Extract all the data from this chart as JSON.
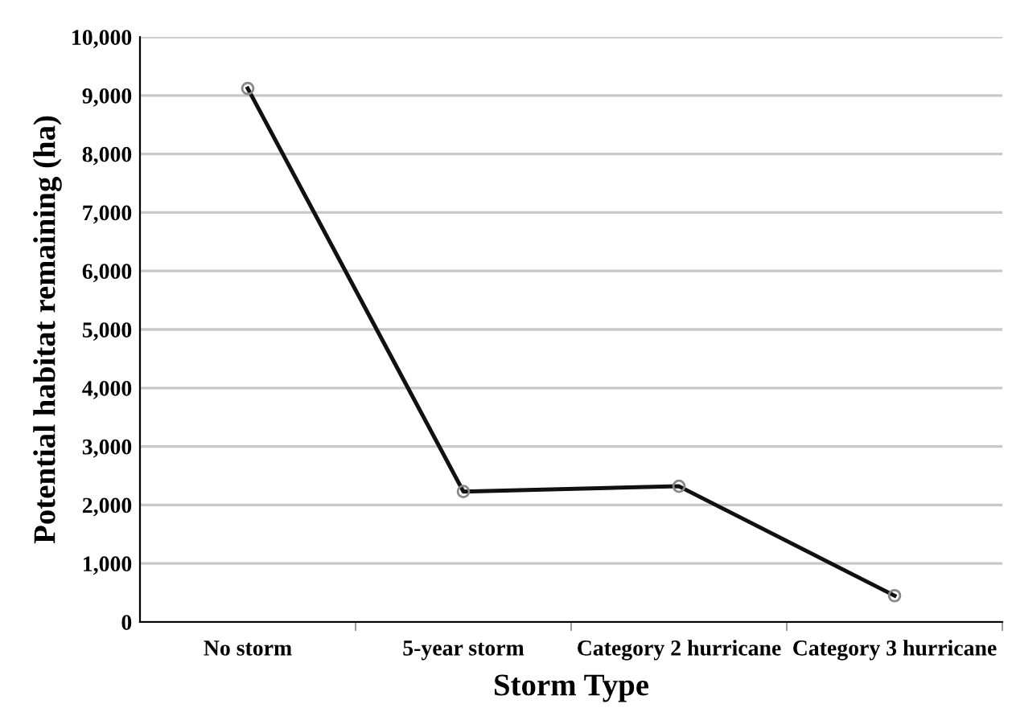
{
  "chart_data": {
    "type": "line",
    "xlabel": "Storm Type",
    "ylabel": "Potential habitat remaining (ha)",
    "categories": [
      "No storm",
      "5-year storm",
      "Category 2 hurricane",
      "Category 3 hurricane"
    ],
    "series": [
      {
        "color": "#111111",
        "values": [
          9120,
          2230,
          2320,
          450
        ]
      }
    ],
    "ylim": [
      0,
      10000
    ],
    "yticks": [
      0,
      {
        "value": 1000,
        "label": "1,000"
      },
      {
        "value": 2000,
        "label": "2,000"
      },
      {
        "value": 3000,
        "label": "3,000"
      },
      {
        "value": 4000,
        "label": "4,000"
      },
      {
        "value": 5000,
        "label": "5,000"
      },
      {
        "value": 6000,
        "label": "6,000"
      },
      {
        "value": 7000,
        "label": "7,000"
      },
      {
        "value": 8000,
        "label": "8,000"
      },
      {
        "value": 9000,
        "label": "9,000"
      },
      {
        "value": 10000,
        "label": "10,000"
      }
    ],
    "grid": "y",
    "marker": "circle",
    "line_style": "solid"
  }
}
